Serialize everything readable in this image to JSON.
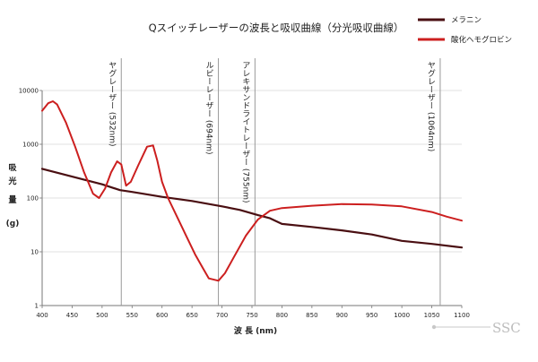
{
  "chart_data": {
    "type": "line",
    "title": "Qスイッチレーザーの波長と吸収曲線（分光吸収曲線）",
    "xlabel": "波 長 (nm)",
    "ylabel": [
      "吸",
      "光",
      "量",
      "(g)"
    ],
    "xlim": [
      400,
      1100
    ],
    "ylim": [
      1,
      10000
    ],
    "yscale": "log",
    "x_ticks": [
      400,
      450,
      500,
      550,
      600,
      650,
      700,
      750,
      800,
      850,
      900,
      950,
      1000,
      1050,
      1100
    ],
    "y_ticks": [
      {
        "value": 10000,
        "label": "10000"
      },
      {
        "value": 1000,
        "label": "1000"
      },
      {
        "value": 100,
        "label": "100"
      },
      {
        "value": 10,
        "label": "10"
      },
      {
        "value": 1,
        "label": "1"
      }
    ],
    "series": [
      {
        "name": "メラニン",
        "color": "#4a0f12",
        "x": [
          400,
          450,
          500,
          530,
          550,
          600,
          650,
          700,
          730,
          760,
          780,
          800,
          850,
          900,
          950,
          1000,
          1050,
          1100
        ],
        "y": [
          350,
          250,
          180,
          140,
          130,
          105,
          88,
          70,
          60,
          48,
          42,
          33,
          29,
          25,
          21,
          16,
          14,
          12
        ]
      },
      {
        "name": "酸化ヘモグロビン",
        "color": "#cc1f1f",
        "x": [
          400,
          410,
          418,
          425,
          440,
          455,
          470,
          485,
          495,
          505,
          515,
          525,
          532,
          540,
          548,
          560,
          575,
          585,
          592,
          600,
          610,
          625,
          640,
          655,
          668,
          678,
          694,
          705,
          720,
          740,
          760,
          780,
          800,
          850,
          900,
          950,
          1000,
          1050,
          1075,
          1100
        ],
        "y": [
          4200,
          5800,
          6300,
          5500,
          2500,
          900,
          300,
          120,
          100,
          150,
          300,
          480,
          420,
          170,
          200,
          400,
          900,
          950,
          500,
          200,
          100,
          45,
          20,
          9,
          5,
          3.2,
          2.9,
          4,
          8,
          20,
          40,
          58,
          65,
          72,
          77,
          76,
          70,
          55,
          45,
          38
        ]
      }
    ],
    "legend": {
      "placement": "top-right"
    },
    "annotations": [
      {
        "x": 532,
        "label": "ヤグレーザー (532nm)"
      },
      {
        "x": 694,
        "label": "ルビーレーザー (694nm)"
      },
      {
        "x": 755,
        "label": "アレキサンドライトレーザー (755nm)"
      },
      {
        "x": 1064,
        "label": "ヤグレーザー (1064nm)"
      }
    ],
    "logo": "SSC"
  }
}
